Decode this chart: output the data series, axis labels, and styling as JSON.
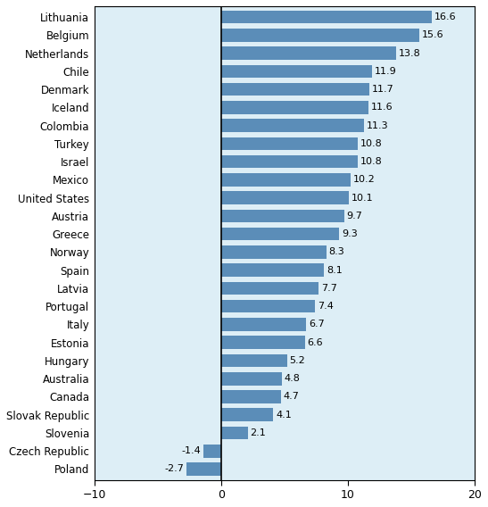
{
  "countries": [
    "Lithuania",
    "Belgium",
    "Netherlands",
    "Chile",
    "Denmark",
    "Iceland",
    "Colombia",
    "Turkey",
    "Israel",
    "Mexico",
    "United States",
    "Austria",
    "Greece",
    "Norway",
    "Spain",
    "Latvia",
    "Portugal",
    "Italy",
    "Estonia",
    "Hungary",
    "Australia",
    "Canada",
    "Slovak Republic",
    "Slovenia",
    "Czech Republic",
    "Poland"
  ],
  "values": [
    16.6,
    15.6,
    13.8,
    11.9,
    11.7,
    11.6,
    11.3,
    10.8,
    10.8,
    10.2,
    10.1,
    9.7,
    9.3,
    8.3,
    8.1,
    7.7,
    7.4,
    6.7,
    6.6,
    5.2,
    4.8,
    4.7,
    4.1,
    2.1,
    -1.4,
    -2.7
  ],
  "bar_color": "#5b8db8",
  "background_color": "#ddeef6",
  "fig_background": "#ffffff",
  "xlim": [
    -10,
    20
  ],
  "xticks": [
    -10,
    0,
    10,
    20
  ],
  "label_fontsize": 8.5,
  "value_fontsize": 8.0,
  "tick_fontsize": 9.0
}
